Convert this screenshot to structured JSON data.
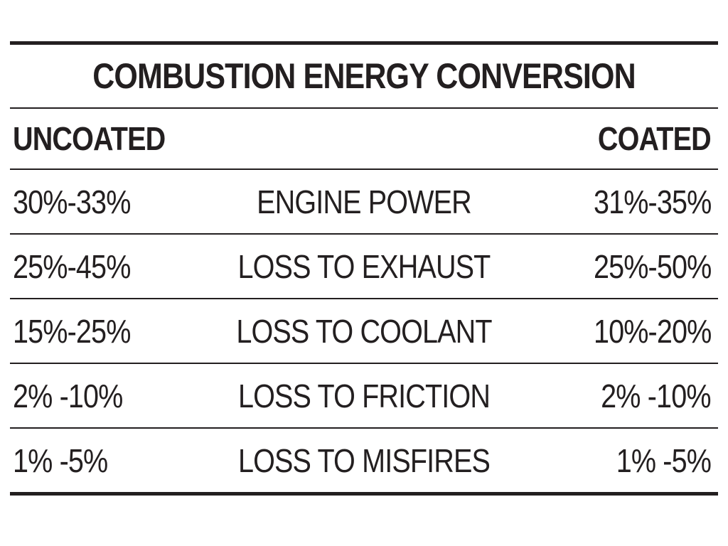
{
  "table": {
    "title": "COMBUSTION ENERGY CONVERSION",
    "header": {
      "left": "UNCOATED",
      "right": "COATED"
    },
    "rows": [
      {
        "uncoated": "30%-33%",
        "label": "ENGINE POWER",
        "coated": "31%-35%"
      },
      {
        "uncoated": "25%-45%",
        "label": "LOSS TO EXHAUST",
        "coated": "25%-50%"
      },
      {
        "uncoated": "15%-25%",
        "label": "LOSS TO COOLANT",
        "coated": "10%-20%"
      },
      {
        "uncoated": "2% -10%",
        "label": "LOSS TO FRICTION",
        "coated": "2% -10%"
      },
      {
        "uncoated": "1% -5%",
        "label": "LOSS TO MISFIRES",
        "coated": "1% -5%"
      }
    ]
  }
}
